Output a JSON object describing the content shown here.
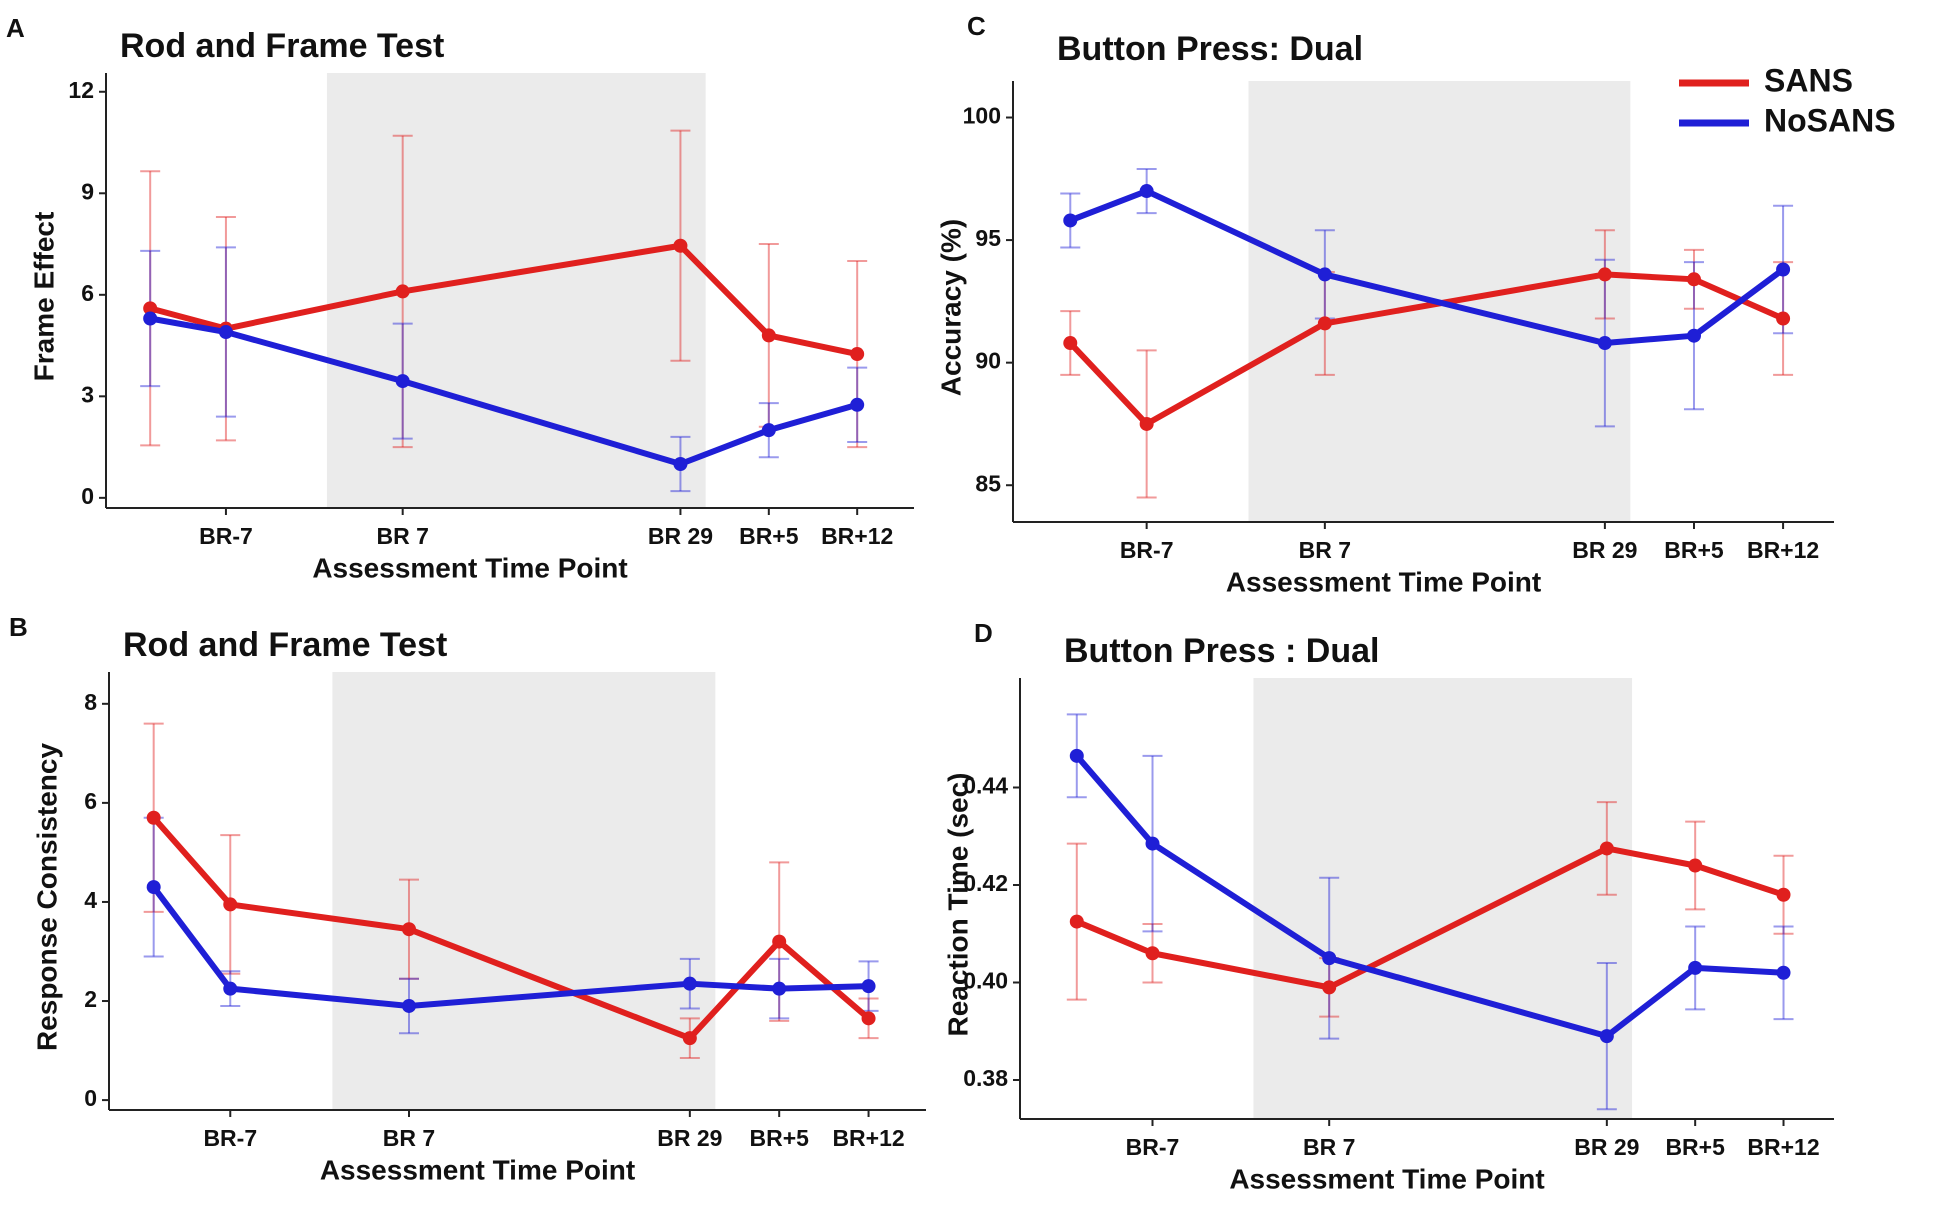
{
  "chart_data": [
    {
      "type": "line",
      "label": "A",
      "title": "Rod and Frame Test",
      "xlabel": "Assessment Time Point",
      "ylabel": "Frame Effect",
      "x": [
        -13,
        -7,
        7,
        29,
        36,
        43
      ],
      "xlim": [
        -16.5,
        47.5
      ],
      "xticks": [
        {
          "value": -7,
          "label": "BR-7"
        },
        {
          "value": 7,
          "label": "BR 7"
        },
        {
          "value": 29,
          "label": "BR 29"
        },
        {
          "value": 36,
          "label": "BR+5"
        },
        {
          "value": 43,
          "label": "BR+12"
        }
      ],
      "shaded": [
        1,
        31
      ],
      "ylim": [
        -0.3,
        12.2
      ],
      "yticks": [
        0,
        3,
        6,
        9,
        12
      ],
      "series": [
        {
          "color": "#e0201e",
          "values": [
            5.6,
            5.0,
            6.1,
            7.45,
            4.8,
            4.25
          ],
          "errors": [
            4.05,
            3.3,
            4.6,
            3.4,
            2.7,
            2.75
          ]
        },
        {
          "color": "#1f1fd6",
          "values": [
            5.3,
            4.9,
            3.45,
            1.0,
            2.0,
            2.75
          ],
          "errors": [
            2.0,
            2.5,
            1.7,
            0.8,
            0.8,
            1.1
          ]
        }
      ]
    },
    {
      "type": "line",
      "label": "B",
      "title": "Rod and Frame Test",
      "xlabel": "Assessment Time Point",
      "ylabel": "Response Consistency",
      "x": [
        -13,
        -7,
        7,
        29,
        36,
        43
      ],
      "xlim": [
        -16.5,
        47.5
      ],
      "xticks": [
        {
          "value": -7,
          "label": "BR-7"
        },
        {
          "value": 7,
          "label": "BR 7"
        },
        {
          "value": 29,
          "label": "BR 29"
        },
        {
          "value": 36,
          "label": "BR+5"
        },
        {
          "value": 43,
          "label": "BR+12"
        }
      ],
      "shaded": [
        1,
        31
      ],
      "ylim": [
        -0.2,
        8.4
      ],
      "yticks": [
        0,
        2,
        4,
        6,
        8
      ],
      "series": [
        {
          "color": "#e0201e",
          "values": [
            5.7,
            3.95,
            3.45,
            1.25,
            3.2,
            1.65
          ],
          "errors": [
            1.9,
            1.4,
            1.0,
            0.4,
            1.6,
            0.4
          ]
        },
        {
          "color": "#1f1fd6",
          "values": [
            4.3,
            2.25,
            1.9,
            2.35,
            2.25,
            2.3
          ],
          "errors": [
            1.4,
            0.35,
            0.55,
            0.5,
            0.6,
            0.5
          ]
        }
      ]
    },
    {
      "type": "line",
      "label": "C",
      "title": "Button Press: Dual",
      "xlabel": "Assessment Time Point",
      "ylabel": "Accuracy (%)",
      "x": [
        -13,
        -7,
        7,
        29,
        36,
        43
      ],
      "xlim": [
        -17.5,
        47
      ],
      "xticks": [
        {
          "value": -7,
          "label": "BR-7"
        },
        {
          "value": 7,
          "label": "BR 7"
        },
        {
          "value": 29,
          "label": "BR 29"
        },
        {
          "value": 36,
          "label": "BR+5"
        },
        {
          "value": 43,
          "label": "BR+12"
        }
      ],
      "shaded": [
        1,
        31
      ],
      "ylim": [
        83.5,
        101
      ],
      "yticks": [
        85,
        90,
        95,
        100
      ],
      "legend": "top-right",
      "series": [
        {
          "name": "SANS",
          "color": "#e0201e",
          "values": [
            90.8,
            87.5,
            91.6,
            93.6,
            93.4,
            91.8
          ],
          "errors": [
            1.3,
            3.0,
            2.1,
            1.8,
            1.2,
            2.3
          ]
        },
        {
          "name": "NoSANS",
          "color": "#1f1fd6",
          "values": [
            95.8,
            97.0,
            93.6,
            90.8,
            91.1,
            93.8
          ],
          "errors": [
            1.1,
            0.9,
            1.8,
            3.4,
            3.0,
            2.6
          ]
        }
      ]
    },
    {
      "type": "line",
      "label": "D",
      "title": "Button Press : Dual",
      "xlabel": "Assessment Time Point",
      "ylabel": "Reaction Time (sec)",
      "x": [
        -13,
        -7,
        7,
        29,
        36,
        43
      ],
      "xlim": [
        -17.5,
        47
      ],
      "xticks": [
        {
          "value": -7,
          "label": "BR-7"
        },
        {
          "value": 7,
          "label": "BR 7"
        },
        {
          "value": 29,
          "label": "BR 29"
        },
        {
          "value": 36,
          "label": "BR+5"
        },
        {
          "value": 43,
          "label": "BR+12"
        }
      ],
      "shaded": [
        1,
        31
      ],
      "ylim": [
        0.372,
        0.46
      ],
      "yticks": [
        0.38,
        {
          "value": 0.4,
          "label": "0.40"
        },
        0.42,
        0.44
      ],
      "series": [
        {
          "color": "#e0201e",
          "values": [
            0.4125,
            0.406,
            0.399,
            0.4275,
            0.424,
            0.418
          ],
          "errors": [
            0.016,
            0.006,
            0.006,
            0.0095,
            0.009,
            0.008
          ]
        },
        {
          "color": "#1f1fd6",
          "values": [
            0.4465,
            0.4285,
            0.405,
            0.389,
            0.403,
            0.402
          ],
          "errors": [
            0.0085,
            0.018,
            0.0165,
            0.015,
            0.0085,
            0.0095
          ]
        }
      ]
    }
  ]
}
